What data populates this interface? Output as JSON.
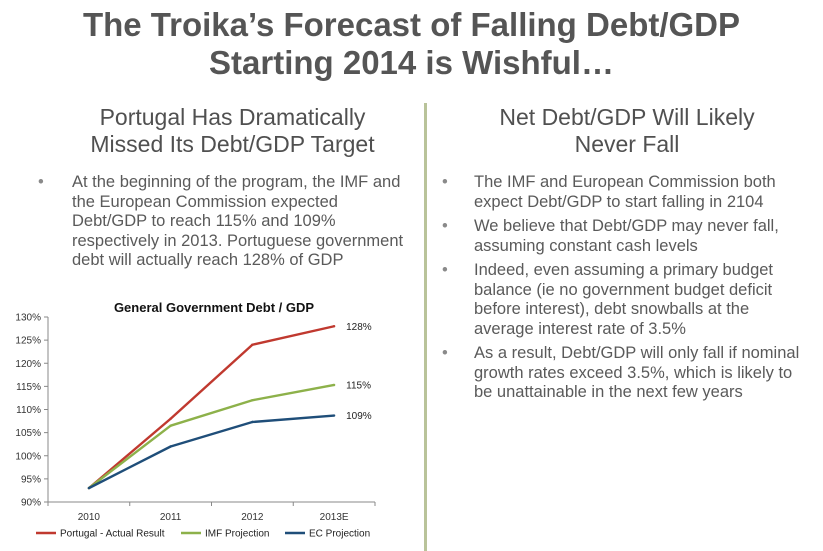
{
  "slide": {
    "title_line1": "The Troika’s Forecast of Falling Debt/GDP",
    "title_line2": "Starting 2014 is Wishful…"
  },
  "left": {
    "heading_line1": "Portugal Has Dramatically",
    "heading_line2": "Missed Its Debt/GDP Target",
    "bullets": [
      "At the beginning of the program, the IMF and the European Commission  expected Debt/GDP to reach 115% and 109% respectively in 2013.  Portuguese government debt will actually reach 128% of GDP"
    ]
  },
  "right": {
    "heading_line1": "Net Debt/GDP Will Likely",
    "heading_line2": "Never Fall",
    "bullets": [
      "The IMF and European Commission both expect Debt/GDP to start falling in 2104",
      "We believe that Debt/GDP may never fall, assuming constant cash levels",
      "Indeed, even assuming a primary budget balance (ie no government budget deficit before interest), debt snowballs at the average interest rate of 3.5%",
      "As a result, Debt/GDP will only fall if nominal growth rates exceed 3.5%, which is likely to be unattainable in the next few years"
    ]
  },
  "colors": {
    "portugal": "#c0392f",
    "imf": "#8db14a",
    "ec": "#1f4e79",
    "divider": "#b9c39a"
  },
  "chart_data": {
    "type": "line",
    "title": "General Government Debt / GDP",
    "categories": [
      "2010",
      "2011",
      "2012",
      "2013E"
    ],
    "yticks": [
      "90%",
      "95%",
      "100%",
      "105%",
      "110%",
      "115%",
      "120%",
      "125%",
      "130%"
    ],
    "ylim": [
      90,
      130
    ],
    "series": [
      {
        "name": "Portugal - Actual Result",
        "values": [
          93,
          108,
          124,
          128
        ],
        "end_label": "128%",
        "color": "#c0392f"
      },
      {
        "name": "IMF Projection",
        "values": [
          93,
          106.5,
          112,
          115.3
        ],
        "end_label": "115%",
        "color": "#8db14a"
      },
      {
        "name": "EC Projection",
        "values": [
          93,
          102,
          107.3,
          108.7
        ],
        "end_label": "109%",
        "color": "#1f4e79"
      }
    ],
    "legend_position": "bottom",
    "xlabel": "",
    "ylabel": ""
  }
}
